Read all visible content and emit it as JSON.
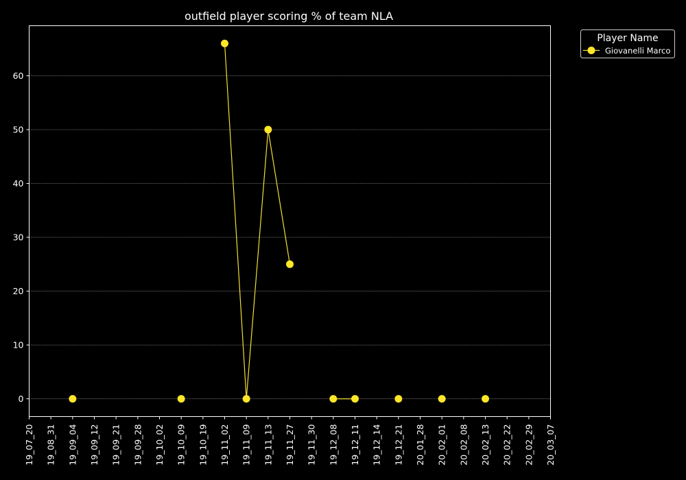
{
  "chart_data": {
    "type": "line",
    "title": "outfield player scoring % of team NLA",
    "xlabel": "",
    "ylabel": "",
    "categories": [
      "19_07_20",
      "19_08_31",
      "19_09_04",
      "19_09_12",
      "19_09_21",
      "19_09_28",
      "19_10_02",
      "19_10_09",
      "19_10_19",
      "19_11_02",
      "19_11_09",
      "19_11_13",
      "19_11_27",
      "19_11_30",
      "19_12_08",
      "19_12_11",
      "19_12_14",
      "19_12_21",
      "20_01_28",
      "20_02_01",
      "20_02_08",
      "20_02_13",
      "20_02_22",
      "20_02_29",
      "20_03_07"
    ],
    "yticks": [
      0,
      10,
      20,
      30,
      40,
      50,
      60
    ],
    "ylim": [
      -3.3,
      69.3
    ],
    "grid": true,
    "legend": {
      "title": "Player Name",
      "placement": "outside-top-right"
    },
    "series": [
      {
        "name": "Giovanelli Marco",
        "color": "#f2e135",
        "marker_color": "#ffe629",
        "points": [
          {
            "x": "19_09_04",
            "y": 0
          },
          {
            "x": "19_10_09",
            "y": 0
          },
          {
            "x": "19_11_02",
            "y": 66
          },
          {
            "x": "19_11_09",
            "y": 0
          },
          {
            "x": "19_11_13",
            "y": 50
          },
          {
            "x": "19_11_27",
            "y": 25
          },
          {
            "x": "19_12_08",
            "y": 0
          },
          {
            "x": "19_12_11",
            "y": 0
          },
          {
            "x": "19_12_21",
            "y": 0
          },
          {
            "x": "20_02_01",
            "y": 0
          },
          {
            "x": "20_02_13",
            "y": 0
          }
        ],
        "segments": [
          [
            "19_11_02",
            "19_11_09",
            "19_11_13",
            "19_11_27"
          ],
          [
            "19_12_08",
            "19_12_11"
          ]
        ]
      }
    ]
  }
}
